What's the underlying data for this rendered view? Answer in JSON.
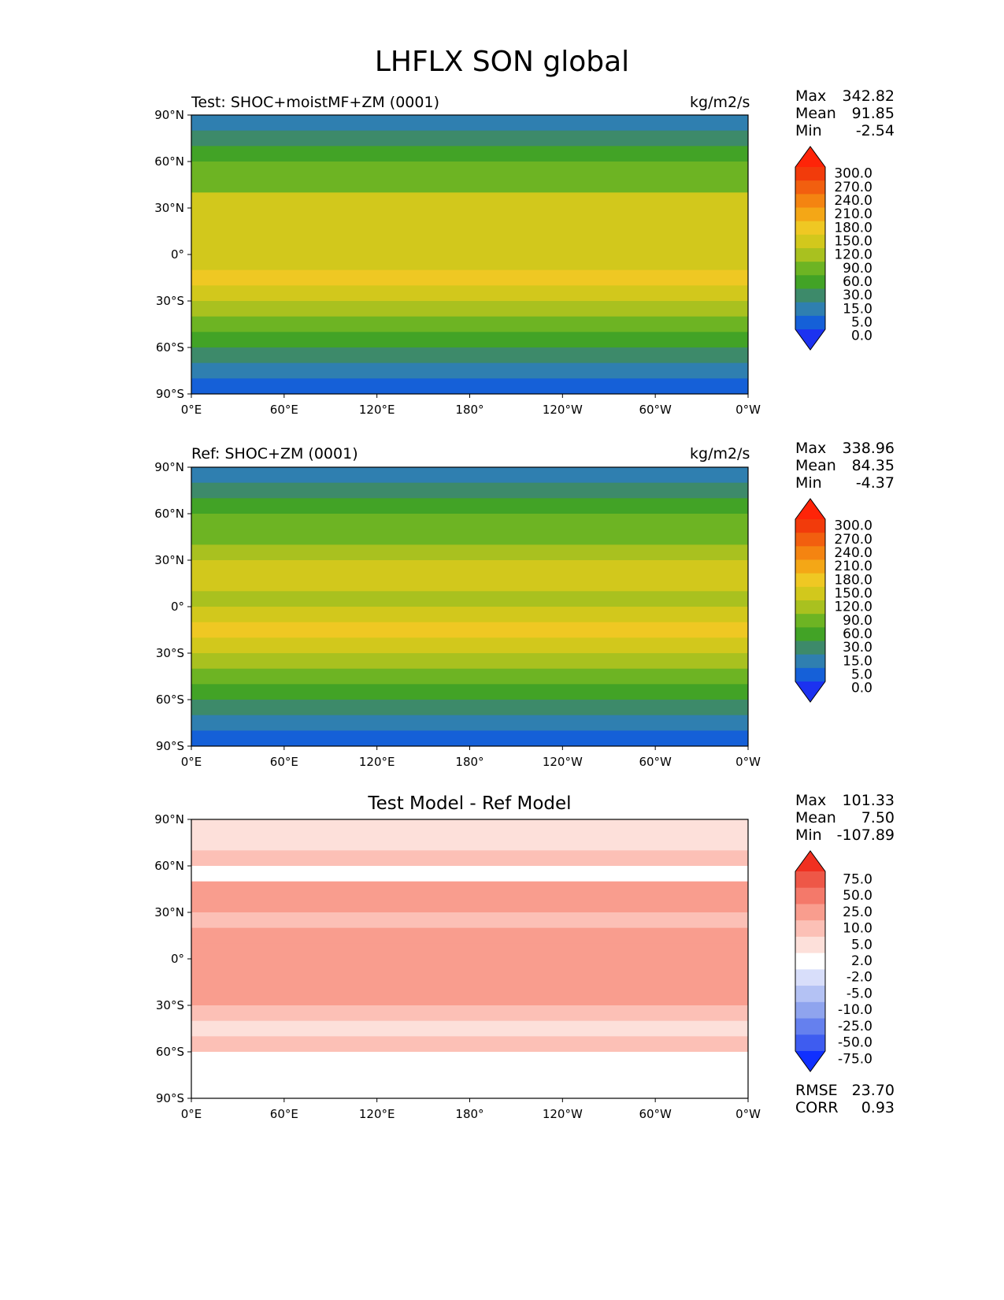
{
  "figure_title": "LHFLX SON global",
  "panels": [
    {
      "left_title": "Test: SHOC+moistMF+ZM (0001)",
      "right_title": "kg/m2/s",
      "stats": [
        [
          "Max",
          "342.82"
        ],
        [
          "Mean",
          "91.85"
        ],
        [
          "Min",
          "-2.54"
        ]
      ],
      "cmap": "lhflx"
    },
    {
      "left_title": "Ref: SHOC+ZM (0001)",
      "right_title": "kg/m2/s",
      "stats": [
        [
          "Max",
          "338.96"
        ],
        [
          "Mean",
          "84.35"
        ],
        [
          "Min",
          "-4.37"
        ]
      ],
      "cmap": "lhflx"
    },
    {
      "center_title": "Test Model - Ref Model",
      "stats": [
        [
          "Max",
          "101.33"
        ],
        [
          "Mean",
          "7.50"
        ],
        [
          "Min",
          "-107.89"
        ]
      ],
      "bottom_stats": [
        [
          "RMSE",
          "23.70"
        ],
        [
          "CORR",
          "0.93"
        ]
      ],
      "cmap": "diff"
    }
  ],
  "axes": {
    "lat_ticks": [
      "90°N",
      "60°N",
      "30°N",
      "0°",
      "30°S",
      "60°S",
      "90°S"
    ],
    "lon_ticks": [
      "0°E",
      "60°E",
      "120°E",
      "180°",
      "120°W",
      "60°W",
      "0°W"
    ]
  },
  "colorbars": {
    "lhflx": {
      "labels": [
        "300.0",
        "270.0",
        "240.0",
        "210.0",
        "180.0",
        "150.0",
        "120.0",
        "90.0",
        "60.0",
        "30.0",
        "15.0",
        "5.0",
        "0.0"
      ],
      "colors": [
        "#1c32f0",
        "#1560d8",
        "#2f7fb0",
        "#3d8a6a",
        "#42a326",
        "#6db423",
        "#a9c11f",
        "#d2c81c",
        "#efc823",
        "#f4a716",
        "#f48411",
        "#f25f0f",
        "#f23b0b",
        "#fe2408"
      ]
    },
    "diff": {
      "labels": [
        "75.0",
        "50.0",
        "25.0",
        "10.0",
        "5.0",
        "2.0",
        "-2.0",
        "-5.0",
        "-10.0",
        "-25.0",
        "-50.0",
        "-75.0"
      ],
      "colors": [
        "#1030ff",
        "#3e5cf0",
        "#6580ee",
        "#8fa4ee",
        "#b4c2f4",
        "#d8defa",
        "#ffffff",
        "#fde0da",
        "#fcc0b6",
        "#f99d8e",
        "#f4796a",
        "#ee5747",
        "#f03020"
      ]
    }
  },
  "chart_data": [
    {
      "type": "heatmap",
      "title": "Test: SHOC+moistMF+ZM (0001)",
      "units": "kg/m2/s",
      "x_ticks": [
        "0°E",
        "60°E",
        "120°E",
        "180°",
        "120°W",
        "60°W",
        "0°W"
      ],
      "y_ticks": [
        "90°N",
        "60°N",
        "30°N",
        "0°",
        "30°S",
        "60°S",
        "90°S"
      ],
      "xlim": [
        0,
        360
      ],
      "ylim": [
        -90,
        90
      ],
      "levels": [
        0,
        5,
        15,
        30,
        60,
        90,
        120,
        150,
        180,
        210,
        240,
        270,
        300
      ],
      "max": 342.82,
      "mean": 91.85,
      "min": -2.54,
      "grid": "latitude_bands_zonal_mean",
      "zonal_mean_by_latitude": [
        {
          "lat": 85,
          "value": 5
        },
        {
          "lat": 75,
          "value": 20
        },
        {
          "lat": 65,
          "value": 40
        },
        {
          "lat": 55,
          "value": 65
        },
        {
          "lat": 45,
          "value": 85
        },
        {
          "lat": 35,
          "value": 120
        },
        {
          "lat": 25,
          "value": 140
        },
        {
          "lat": 15,
          "value": 145
        },
        {
          "lat": 5,
          "value": 120
        },
        {
          "lat": -5,
          "value": 130
        },
        {
          "lat": -15,
          "value": 165
        },
        {
          "lat": -25,
          "value": 145
        },
        {
          "lat": -35,
          "value": 115
        },
        {
          "lat": -45,
          "value": 80
        },
        {
          "lat": -55,
          "value": 45
        },
        {
          "lat": -65,
          "value": 20
        },
        {
          "lat": -75,
          "value": 5
        },
        {
          "lat": -85,
          "value": 0
        }
      ]
    },
    {
      "type": "heatmap",
      "title": "Ref: SHOC+ZM (0001)",
      "units": "kg/m2/s",
      "x_ticks": [
        "0°E",
        "60°E",
        "120°E",
        "180°",
        "120°W",
        "60°W",
        "0°W"
      ],
      "y_ticks": [
        "90°N",
        "60°N",
        "30°N",
        "0°",
        "30°S",
        "60°S",
        "90°S"
      ],
      "xlim": [
        0,
        360
      ],
      "ylim": [
        -90,
        90
      ],
      "levels": [
        0,
        5,
        15,
        30,
        60,
        90,
        120,
        150,
        180,
        210,
        240,
        270,
        300
      ],
      "max": 338.96,
      "mean": 84.35,
      "min": -4.37,
      "grid": "latitude_bands_zonal_mean",
      "zonal_mean_by_latitude": [
        {
          "lat": 85,
          "value": 5
        },
        {
          "lat": 75,
          "value": 18
        },
        {
          "lat": 65,
          "value": 38
        },
        {
          "lat": 55,
          "value": 60
        },
        {
          "lat": 45,
          "value": 75
        },
        {
          "lat": 35,
          "value": 105
        },
        {
          "lat": 25,
          "value": 130
        },
        {
          "lat": 15,
          "value": 140
        },
        {
          "lat": 5,
          "value": 110
        },
        {
          "lat": -5,
          "value": 120
        },
        {
          "lat": -15,
          "value": 155
        },
        {
          "lat": -25,
          "value": 135
        },
        {
          "lat": -35,
          "value": 110
        },
        {
          "lat": -45,
          "value": 75
        },
        {
          "lat": -55,
          "value": 40
        },
        {
          "lat": -65,
          "value": 18
        },
        {
          "lat": -75,
          "value": 5
        },
        {
          "lat": -85,
          "value": 0
        }
      ]
    },
    {
      "type": "heatmap",
      "title": "Test Model - Ref Model",
      "x_ticks": [
        "0°E",
        "60°E",
        "120°E",
        "180°",
        "120°W",
        "60°W",
        "0°W"
      ],
      "y_ticks": [
        "90°N",
        "60°N",
        "30°N",
        "0°",
        "30°S",
        "60°S",
        "90°S"
      ],
      "xlim": [
        0,
        360
      ],
      "ylim": [
        -90,
        90
      ],
      "levels": [
        -75,
        -50,
        -25,
        -10,
        -5,
        -2,
        2,
        5,
        10,
        25,
        50,
        75
      ],
      "max": 101.33,
      "mean": 7.5,
      "min": -107.89,
      "rmse": 23.7,
      "corr": 0.93,
      "grid": "latitude_bands_zonal_mean",
      "zonal_mean_by_latitude": [
        {
          "lat": 85,
          "value": 3
        },
        {
          "lat": 75,
          "value": 4
        },
        {
          "lat": 65,
          "value": 8
        },
        {
          "lat": 55,
          "value": 0
        },
        {
          "lat": 45,
          "value": 12
        },
        {
          "lat": 35,
          "value": 18
        },
        {
          "lat": 25,
          "value": 8
        },
        {
          "lat": 15,
          "value": 10
        },
        {
          "lat": 5,
          "value": 12
        },
        {
          "lat": -5,
          "value": 10
        },
        {
          "lat": -15,
          "value": 14
        },
        {
          "lat": -25,
          "value": 12
        },
        {
          "lat": -35,
          "value": 8
        },
        {
          "lat": -45,
          "value": 4
        },
        {
          "lat": -55,
          "value": 6
        },
        {
          "lat": -65,
          "value": 0
        },
        {
          "lat": -75,
          "value": 1
        },
        {
          "lat": -85,
          "value": 0
        }
      ]
    }
  ]
}
